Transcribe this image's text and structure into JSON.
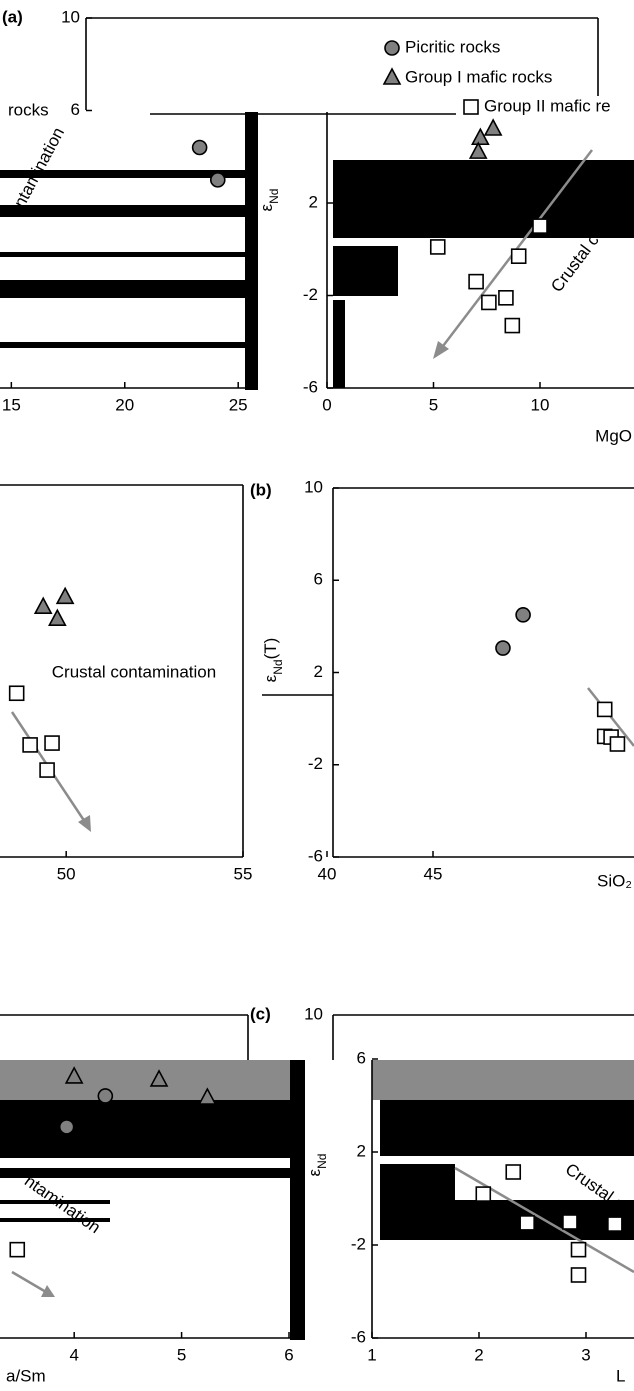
{
  "chart_data": [
    {
      "type": "scatter",
      "panel": "(a)",
      "legend": "upper right",
      "y_label": {
        "symbol": "ε",
        "sub": "Nd"
      },
      "plots": [
        {
          "xlim": [
            14.5,
            25.3
          ],
          "ylim": [
            -6,
            10
          ],
          "xticks": [
            15,
            20,
            25
          ],
          "yticks": [
            10,
            6
          ],
          "annotations": [
            "rocks",
            "ntamination"
          ],
          "series": [
            {
              "name": "Picritic rocks",
              "marker": "circle",
              "color": "#808080",
              "x": [
                23.3,
                24.1
              ],
              "values": [
                4.4,
                3.0
              ]
            }
          ]
        },
        {
          "xlim": [
            0,
            15
          ],
          "ylim": [
            -6,
            10
          ],
          "xticks": [
            0,
            5,
            10
          ],
          "yticks": [
            -6,
            -2,
            2
          ],
          "x_label": "MgO",
          "annotations": [
            "Crustal contam"
          ],
          "series": [
            {
              "name": "Group I mafic rocks",
              "marker": "triangle",
              "color": "#808080",
              "x": [
                7.8,
                7.2,
                7.1
              ],
              "values": [
                5.2,
                4.8,
                4.2
              ]
            },
            {
              "name": "Group II mafic re",
              "marker": "square",
              "color": "#ffffff",
              "x": [
                10.0,
                9.0,
                5.2,
                7.0,
                7.6,
                8.4,
                8.7
              ],
              "values": [
                1.0,
                -0.3,
                0.1,
                -1.4,
                -2.3,
                -2.1,
                -3.3
              ]
            }
          ]
        }
      ]
    },
    {
      "type": "scatter",
      "panel": "(b)",
      "y_label": {
        "symbol": "ε",
        "sub": "Nd",
        "rest": "(T)"
      },
      "plots": [
        {
          "xlim": [
            48.1,
            55
          ],
          "ylim": [
            -6,
            10
          ],
          "xticks": [
            50,
            55
          ],
          "annotations": [
            "Crustal contamination"
          ],
          "series": [
            {
              "marker": "triangle",
              "color": "#808080",
              "x": [
                49.35,
                49.97,
                49.75
              ],
              "values": [
                4.83,
                5.26,
                4.31
              ]
            },
            {
              "marker": "square",
              "color": "#ffffff",
              "x": [
                48.6,
                48.98,
                49.6,
                49.46
              ],
              "values": [
                1.1,
                -1.14,
                -1.06,
                -2.23
              ]
            }
          ]
        },
        {
          "xlim": [
            40,
            55
          ],
          "ylim": [
            -6,
            10
          ],
          "xticks": [
            40,
            45
          ],
          "yticks": [
            -6,
            -2,
            2,
            6,
            10
          ],
          "x_label": "SiO₂",
          "series": [
            {
              "marker": "circle",
              "color": "#808080",
              "x": [
                48.3,
                49.25
              ],
              "values": [
                3.06,
                4.5
              ]
            },
            {
              "marker": "square",
              "color": "#ffffff",
              "x": [
                53.1,
                53.1,
                53.4,
                53.7
              ],
              "values": [
                0.4,
                -0.77,
                -0.8,
                -1.1
              ]
            }
          ]
        }
      ]
    },
    {
      "type": "scatter",
      "panel": "(c)",
      "inset_ytick": 10,
      "y_label": {
        "symbol": "ε",
        "sub": "Nd"
      },
      "plots": [
        {
          "xlim": [
            3.3,
            6
          ],
          "ylim": [
            -6,
            8
          ],
          "xticks": [
            4,
            5,
            6
          ],
          "x_label": "a/Sm",
          "annotations": [
            "ntamination"
          ],
          "series": [
            {
              "marker": "triangle",
              "color": "#808080",
              "x": [
                4.0,
                4.79,
                5.24
              ],
              "values": [
                5.23,
                5.1,
                4.32
              ]
            },
            {
              "marker": "circle",
              "color": "#808080",
              "x": [
                4.29,
                3.93
              ],
              "values": [
                4.41,
                3.08
              ]
            },
            {
              "marker": "square",
              "color": "#ffffff",
              "x": [
                3.47
              ],
              "values": [
                -2.2
              ]
            }
          ]
        },
        {
          "xlim": [
            1,
            3.5
          ],
          "ylim": [
            -6,
            8
          ],
          "xticks": [
            1,
            2,
            3
          ],
          "yticks": [
            -6,
            -2,
            2,
            6
          ],
          "x_label": "L",
          "annotations": [
            "Crustal co"
          ],
          "series": [
            {
              "marker": "square",
              "color": "#ffffff",
              "x": [
                2.32,
                2.04,
                2.45,
                2.85,
                3.27,
                2.93,
                2.93
              ],
              "values": [
                1.14,
                0.19,
                -1.05,
                -1.01,
                -1.1,
                -2.2,
                -3.29
              ]
            }
          ]
        }
      ]
    }
  ]
}
